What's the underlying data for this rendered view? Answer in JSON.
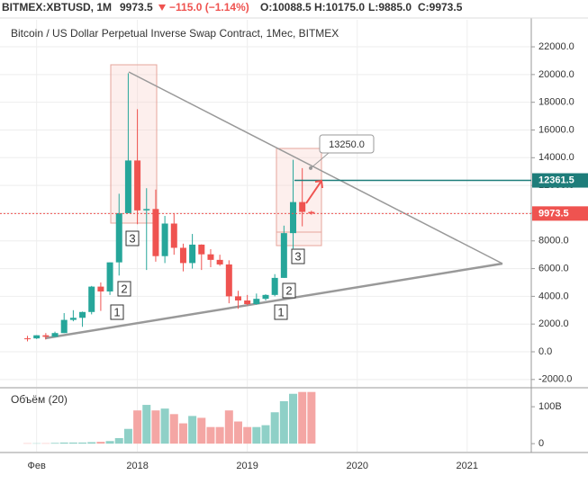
{
  "header": {
    "symbol": "BITMEX:XBTUSD, 1M",
    "last": "9973.5",
    "change": "−115.0 (−1.14%)",
    "ohlc": [
      "O:10088.5",
      "H:10175.0",
      "L:9885.0",
      "C:9973.5"
    ]
  },
  "annotations": [
    "1",
    "2",
    "3",
    "1",
    "2",
    "3"
  ],
  "chart_data": [
    {
      "type": "candlestick",
      "title": "Bitcoin / US Dollar Perpetual Inverse Swap Contract, 1Мес, BITMEX",
      "x": [
        "2017-01",
        "2017-02",
        "2017-03",
        "2017-04",
        "2017-05",
        "2017-06",
        "2017-07",
        "2017-08",
        "2017-09",
        "2017-10",
        "2017-11",
        "2017-12",
        "2018-01",
        "2018-02",
        "2018-03",
        "2018-04",
        "2018-05",
        "2018-06",
        "2018-07",
        "2018-08",
        "2018-09",
        "2018-10",
        "2018-11",
        "2018-12",
        "2019-01",
        "2019-02",
        "2019-03",
        "2019-04",
        "2019-05",
        "2019-06",
        "2019-07",
        "2019-08"
      ],
      "open": [
        970,
        965,
        1190,
        1080,
        1350,
        2300,
        2450,
        2870,
        4700,
        4350,
        6450,
        10000,
        13800,
        10200,
        10300,
        6900,
        9250,
        7500,
        6400,
        7730,
        7030,
        6630,
        6300,
        4000,
        3700,
        3440,
        3820,
        4100,
        5330,
        8560,
        10800,
        10088.5
      ],
      "high": [
        1150,
        1200,
        1350,
        1450,
        2790,
        3000,
        2900,
        4750,
        5000,
        6450,
        11400,
        20100,
        17500,
        11800,
        11700,
        9800,
        10000,
        7800,
        8500,
        7750,
        7400,
        7000,
        6600,
        4400,
        4100,
        4200,
        4150,
        5600,
        9100,
        13850,
        13250,
        10175
      ],
      "low": [
        750,
        920,
        890,
        1060,
        1350,
        2200,
        1800,
        2700,
        2950,
        4100,
        5500,
        10000,
        9200,
        5900,
        6500,
        6400,
        7000,
        5800,
        6000,
        5900,
        6100,
        6200,
        3500,
        3100,
        3350,
        3400,
        3700,
        4000,
        5330,
        7450,
        9050,
        9885
      ],
      "close": [
        965,
        1190,
        1080,
        1350,
        2300,
        2450,
        2870,
        4700,
        4350,
        6450,
        10000,
        13800,
        10200,
        10300,
        6900,
        9250,
        7500,
        6400,
        7730,
        7030,
        6630,
        6300,
        4000,
        3700,
        3440,
        3820,
        4100,
        5330,
        8560,
        10800,
        10090,
        9973.5
      ],
      "up_color": "#26a69a",
      "down_color": "#ef5350",
      "xlim": [
        "2016-10",
        "2021-08"
      ],
      "xticks": [
        {
          "value": "2017-02",
          "label": "Фев"
        },
        {
          "value": "2018-01",
          "label": "2018"
        },
        {
          "value": "2019-01",
          "label": "2019"
        },
        {
          "value": "2020-01",
          "label": "2020"
        },
        {
          "value": "2021-01",
          "label": "2021"
        }
      ],
      "ylim": [
        -2530,
        23950
      ],
      "yticks": [
        {
          "value": -2000,
          "label": "-2000.0"
        },
        {
          "value": 0,
          "label": "0.0"
        },
        {
          "value": 2000,
          "label": "2000.0"
        },
        {
          "value": 4000,
          "label": "4000.0"
        },
        {
          "value": 6000,
          "label": "6000.0"
        },
        {
          "value": 8000,
          "label": "8000.0"
        },
        {
          "value": 10000,
          "label": "10000.0"
        },
        {
          "value": 12000,
          "label": "12000.0"
        },
        {
          "value": 14000,
          "label": "14000.0"
        },
        {
          "value": 16000,
          "label": "16000.0"
        },
        {
          "value": 18000,
          "label": "18000.0"
        },
        {
          "value": 20000,
          "label": "20000.0"
        },
        {
          "value": 22000,
          "label": "22000.0"
        }
      ],
      "grid": true,
      "price_lines": [
        {
          "value": 12361.5,
          "color": "#1e7d7a"
        },
        {
          "value": 9973.5,
          "color": "#ef5350"
        }
      ],
      "callout": {
        "label": "13250.0",
        "value": 13250
      }
    },
    {
      "type": "bar",
      "title": "Объём (20)",
      "x": [
        "2017-01",
        "2017-02",
        "2017-03",
        "2017-04",
        "2017-05",
        "2017-06",
        "2017-07",
        "2017-08",
        "2017-09",
        "2017-10",
        "2017-11",
        "2017-12",
        "2018-01",
        "2018-02",
        "2018-03",
        "2018-04",
        "2018-05",
        "2018-06",
        "2018-07",
        "2018-08",
        "2018-09",
        "2018-10",
        "2018-11",
        "2018-12",
        "2019-01",
        "2019-02",
        "2019-03",
        "2019-04",
        "2019-05",
        "2019-06",
        "2019-07",
        "2019-08"
      ],
      "values": [
        1,
        1,
        1,
        2,
        3,
        3,
        3,
        4,
        5,
        7,
        15,
        40,
        90,
        105,
        90,
        95,
        80,
        55,
        75,
        70,
        45,
        45,
        90,
        60,
        45,
        45,
        50,
        85,
        115,
        135,
        140,
        140
      ],
      "up_color": "#8fd0c7",
      "down_color": "#f4a6a4",
      "ylim": [
        -24,
        149
      ],
      "yticks": [
        0,
        {
          "value": 100,
          "label": "100B"
        }
      ]
    }
  ]
}
